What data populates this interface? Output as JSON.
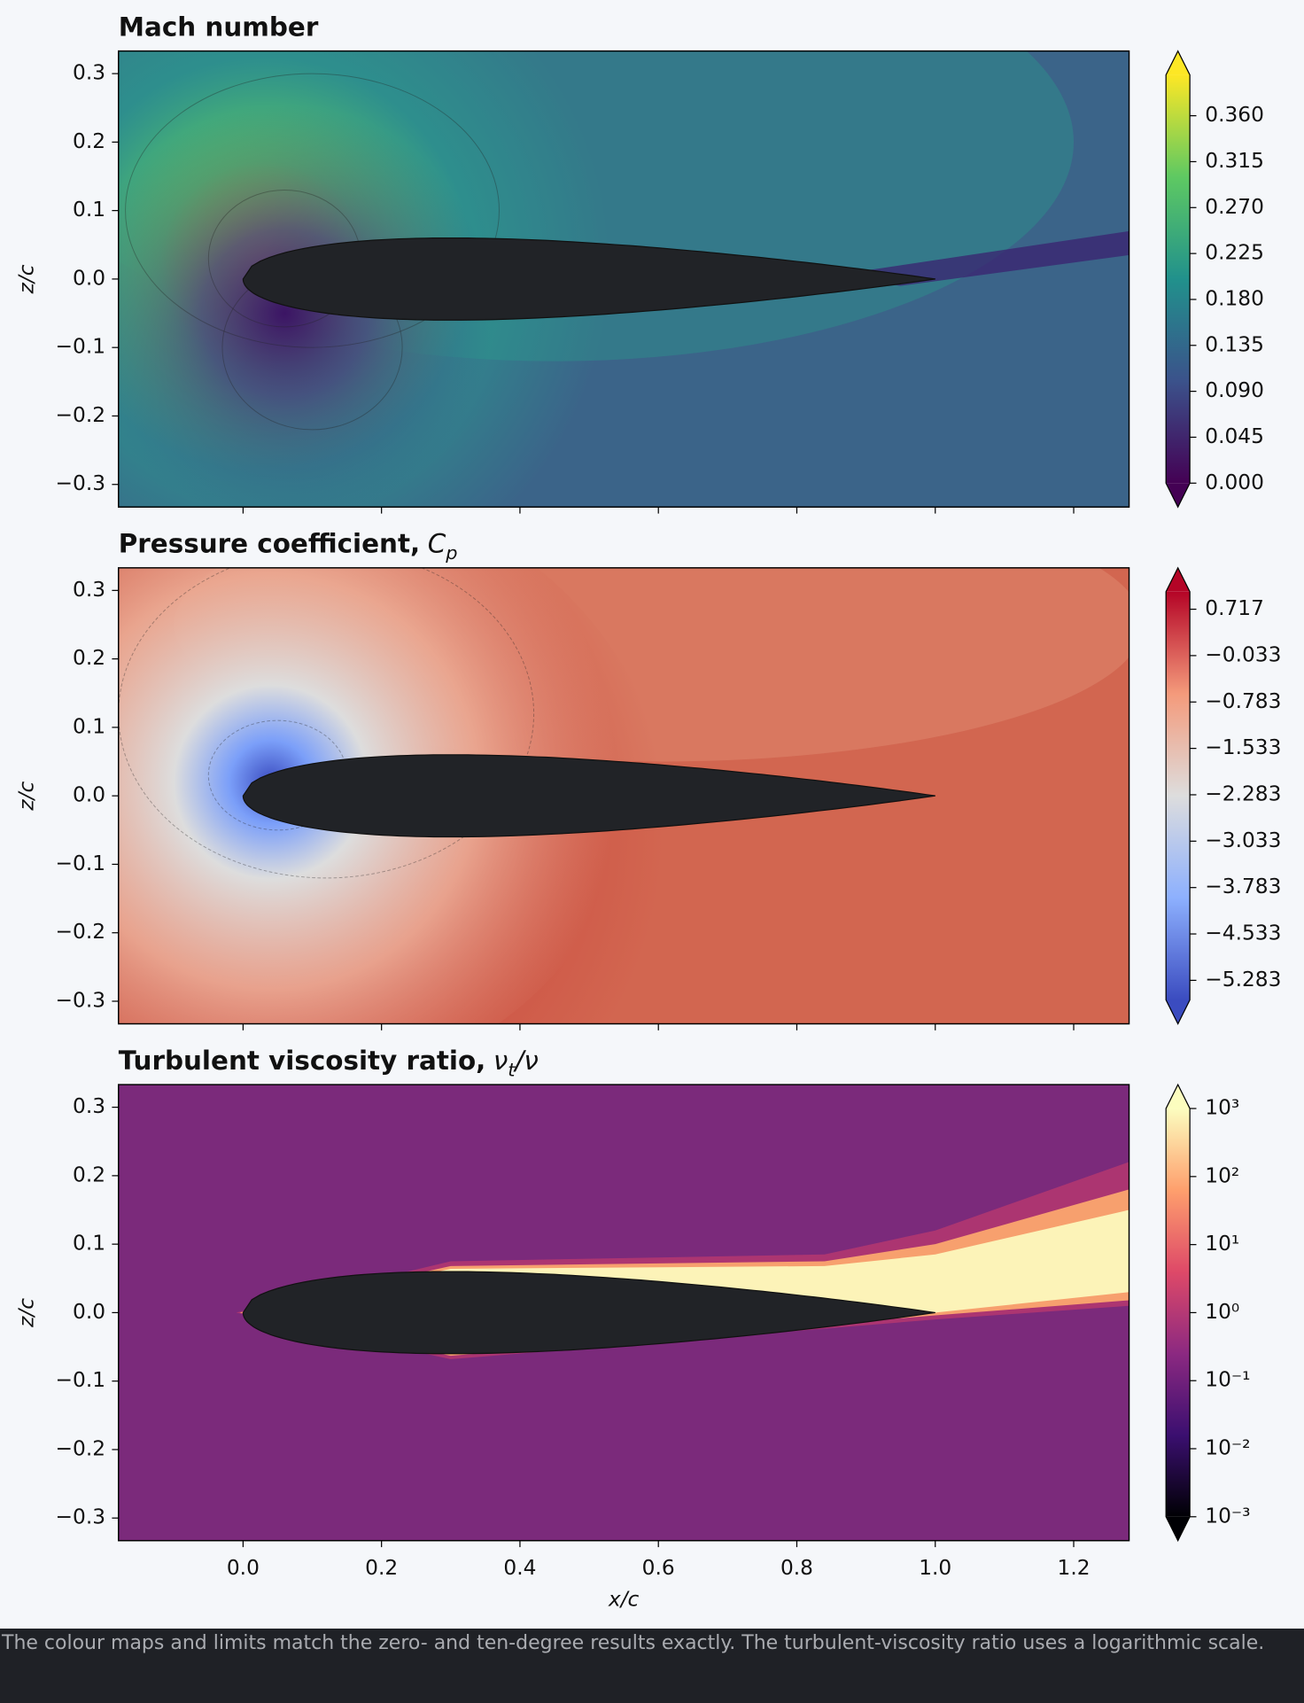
{
  "chart_data": [
    {
      "type": "contour",
      "title": "Mach number",
      "ylabel": "z/c",
      "xlim": [
        -0.18,
        1.28
      ],
      "ylim": [
        -0.333,
        0.333
      ],
      "xticks": [
        0,
        0.2,
        0.4,
        0.6,
        0.8,
        1,
        1.2
      ],
      "yticks": [
        0.3,
        0.2,
        0.1,
        {
          "value": 0,
          "label": "0.0"
        },
        {
          "value": -0.1,
          "label": "−0.1"
        },
        {
          "value": -0.2,
          "label": "−0.2"
        },
        {
          "value": -0.3,
          "label": "−0.3"
        }
      ],
      "colorbar": {
        "clim": [
          0,
          0.4
        ],
        "log": false,
        "extend": "both",
        "colormap": [
          "#440154",
          "#3b528b",
          "#21918c",
          "#5ec962",
          "#fde725"
        ],
        "ticks": [
          {
            "value": 0.36,
            "label": "0.360"
          },
          0.315,
          {
            "value": 0.27,
            "label": "0.270"
          },
          0.225,
          {
            "value": 0.18,
            "label": "0.180"
          },
          0.135,
          {
            "value": 0.09,
            "label": "0.090"
          },
          0.045,
          {
            "value": 0,
            "label": "0.000"
          }
        ]
      }
    },
    {
      "type": "contour",
      "title": "Pressure coefficient,",
      "symbol": "C",
      "symbol_sub": "p",
      "ylabel": "z/c",
      "xlim": [
        -0.18,
        1.28
      ],
      "ylim": [
        -0.333,
        0.333
      ],
      "xticks": [
        0,
        0.2,
        0.4,
        0.6,
        0.8,
        1,
        1.2
      ],
      "yticks": [
        0.3,
        0.2,
        0.1,
        {
          "value": 0,
          "label": "0.0"
        },
        {
          "value": -0.1,
          "label": "−0.1"
        },
        {
          "value": -0.2,
          "label": "−0.2"
        },
        {
          "value": -0.3,
          "label": "−0.3"
        }
      ],
      "colorbar": {
        "clim": [
          -5.6,
          1.0
        ],
        "log": false,
        "extend": "both",
        "colormap": [
          "#3b4cc0",
          "#8db0fe",
          "#dddddd",
          "#f49a7b",
          "#b40426"
        ],
        "ticks": [
          0.717,
          {
            "value": -0.033,
            "label": "−0.033"
          },
          {
            "value": -0.783,
            "label": "−0.783"
          },
          {
            "value": -1.533,
            "label": "−1.533"
          },
          {
            "value": -2.283,
            "label": "−2.283"
          },
          {
            "value": -3.033,
            "label": "−3.033"
          },
          {
            "value": -3.783,
            "label": "−3.783"
          },
          {
            "value": -4.533,
            "label": "−4.533"
          },
          {
            "value": -5.283,
            "label": "−5.283"
          }
        ]
      }
    },
    {
      "type": "contour",
      "title": "Turbulent viscosity ratio,",
      "symbol": "ν",
      "symbol_sub": "t",
      "symbol_tail": "/ν",
      "ylabel": "z/c",
      "xlabel": "x/c",
      "xlim": [
        -0.18,
        1.28
      ],
      "ylim": [
        -0.333,
        0.333
      ],
      "xticks": [
        {
          "value": 0,
          "label": "0.0"
        },
        0.2,
        0.4,
        0.6,
        0.8,
        {
          "value": 1,
          "label": "1.0"
        },
        1.2
      ],
      "yticks": [
        0.3,
        0.2,
        0.1,
        {
          "value": 0,
          "label": "0.0"
        },
        {
          "value": -0.1,
          "label": "−0.1"
        },
        {
          "value": -0.2,
          "label": "−0.2"
        },
        {
          "value": -0.3,
          "label": "−0.3"
        }
      ],
      "colorbar": {
        "clim": [
          0.001,
          1000
        ],
        "log": true,
        "extend": "both",
        "colormap": [
          "#000004",
          "#3b0f70",
          "#8c2981",
          "#de4968",
          "#fe9f6d",
          "#fcfdbf"
        ],
        "ticks": [
          {
            "value": 1000,
            "label": "10³"
          },
          {
            "value": 100,
            "label": "10²"
          },
          {
            "value": 10,
            "label": "10¹"
          },
          {
            "value": 1,
            "label": "10⁰"
          },
          {
            "value": 0.1,
            "label": "10⁻¹"
          },
          {
            "value": 0.01,
            "label": "10⁻²"
          },
          {
            "value": 0.001,
            "label": "10⁻³"
          }
        ]
      }
    }
  ],
  "caption": "The colour maps and limits match the zero- and ten-degree results exactly. The turbulent-viscosity ratio uses a logarithmic scale."
}
